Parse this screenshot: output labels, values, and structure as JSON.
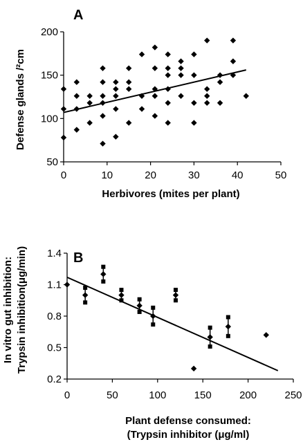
{
  "chart_data": [
    {
      "panel_label": "A",
      "type": "scatter",
      "xlabel": "Herbivores (mites per plant)",
      "ylabel": "Defense glands /²cm",
      "xlim": [
        0,
        50
      ],
      "ylim": [
        50,
        200
      ],
      "xticks": [
        "0",
        "10",
        "20",
        "30",
        "40",
        "50"
      ],
      "yticks": [
        "50",
        "100",
        "150",
        "200"
      ],
      "grid": false,
      "points": [
        {
          "x": 0,
          "y": 78
        },
        {
          "x": 0,
          "y": 111
        },
        {
          "x": 0,
          "y": 134
        },
        {
          "x": 3,
          "y": 87
        },
        {
          "x": 3,
          "y": 111
        },
        {
          "x": 3,
          "y": 126
        },
        {
          "x": 3,
          "y": 142
        },
        {
          "x": 6,
          "y": 95
        },
        {
          "x": 6,
          "y": 118
        },
        {
          "x": 6,
          "y": 126
        },
        {
          "x": 9,
          "y": 71
        },
        {
          "x": 9,
          "y": 103
        },
        {
          "x": 9,
          "y": 118
        },
        {
          "x": 9,
          "y": 126
        },
        {
          "x": 9,
          "y": 142
        },
        {
          "x": 9,
          "y": 158
        },
        {
          "x": 12,
          "y": 79
        },
        {
          "x": 12,
          "y": 111
        },
        {
          "x": 12,
          "y": 126
        },
        {
          "x": 12,
          "y": 134
        },
        {
          "x": 12,
          "y": 142
        },
        {
          "x": 15,
          "y": 95
        },
        {
          "x": 15,
          "y": 134
        },
        {
          "x": 15,
          "y": 142
        },
        {
          "x": 15,
          "y": 158
        },
        {
          "x": 18,
          "y": 111
        },
        {
          "x": 18,
          "y": 126
        },
        {
          "x": 18,
          "y": 174
        },
        {
          "x": 21,
          "y": 103
        },
        {
          "x": 21,
          "y": 126
        },
        {
          "x": 21,
          "y": 134
        },
        {
          "x": 21,
          "y": 158
        },
        {
          "x": 21,
          "y": 182
        },
        {
          "x": 24,
          "y": 95
        },
        {
          "x": 24,
          "y": 118
        },
        {
          "x": 24,
          "y": 134
        },
        {
          "x": 24,
          "y": 150
        },
        {
          "x": 24,
          "y": 158
        },
        {
          "x": 24,
          "y": 174
        },
        {
          "x": 27,
          "y": 126
        },
        {
          "x": 27,
          "y": 150
        },
        {
          "x": 27,
          "y": 158
        },
        {
          "x": 27,
          "y": 166
        },
        {
          "x": 30,
          "y": 95
        },
        {
          "x": 30,
          "y": 118
        },
        {
          "x": 30,
          "y": 150
        },
        {
          "x": 30,
          "y": 174
        },
        {
          "x": 33,
          "y": 118
        },
        {
          "x": 33,
          "y": 126
        },
        {
          "x": 33,
          "y": 134
        },
        {
          "x": 33,
          "y": 190
        },
        {
          "x": 36,
          "y": 118
        },
        {
          "x": 36,
          "y": 142
        },
        {
          "x": 36,
          "y": 150
        },
        {
          "x": 39,
          "y": 150
        },
        {
          "x": 39,
          "y": 166
        },
        {
          "x": 39,
          "y": 190
        },
        {
          "x": 42,
          "y": 126
        }
      ],
      "trendline": {
        "x": [
          0,
          42
        ],
        "y": [
          107,
          156
        ]
      }
    },
    {
      "panel_label": "B",
      "type": "scatter",
      "xlabel_lines": [
        "Plant defense consumed:",
        "(Trypsin inhibitor (μg/ml)"
      ],
      "ylabel_lines": [
        "In vitro gut inhibition:",
        "Trypsin inhibition(μg/min)"
      ],
      "xlim": [
        0,
        250
      ],
      "ylim": [
        0.2,
        1.4
      ],
      "xticks": [
        "0",
        "50",
        "100",
        "150",
        "200",
        "250"
      ],
      "yticks": [
        "0.2",
        "0.5",
        "0.8",
        "1.1",
        "1.4"
      ],
      "grid": false,
      "points": [
        {
          "x": 0,
          "y": 1.1,
          "err": 0.0
        },
        {
          "x": 20,
          "y": 1.0,
          "err": 0.07
        },
        {
          "x": 40,
          "y": 1.2,
          "err": 0.07
        },
        {
          "x": 60,
          "y": 1.0,
          "err": 0.05
        },
        {
          "x": 80,
          "y": 0.9,
          "err": 0.06
        },
        {
          "x": 95,
          "y": 0.8,
          "err": 0.08
        },
        {
          "x": 120,
          "y": 1.0,
          "err": 0.05
        },
        {
          "x": 140,
          "y": 0.3,
          "err": 0.0
        },
        {
          "x": 158,
          "y": 0.6,
          "err": 0.09
        },
        {
          "x": 178,
          "y": 0.7,
          "err": 0.09
        },
        {
          "x": 220,
          "y": 0.62,
          "err": 0.0
        }
      ],
      "trendline": {
        "x": [
          0,
          233
        ],
        "y": [
          1.17,
          0.28
        ]
      }
    }
  ]
}
